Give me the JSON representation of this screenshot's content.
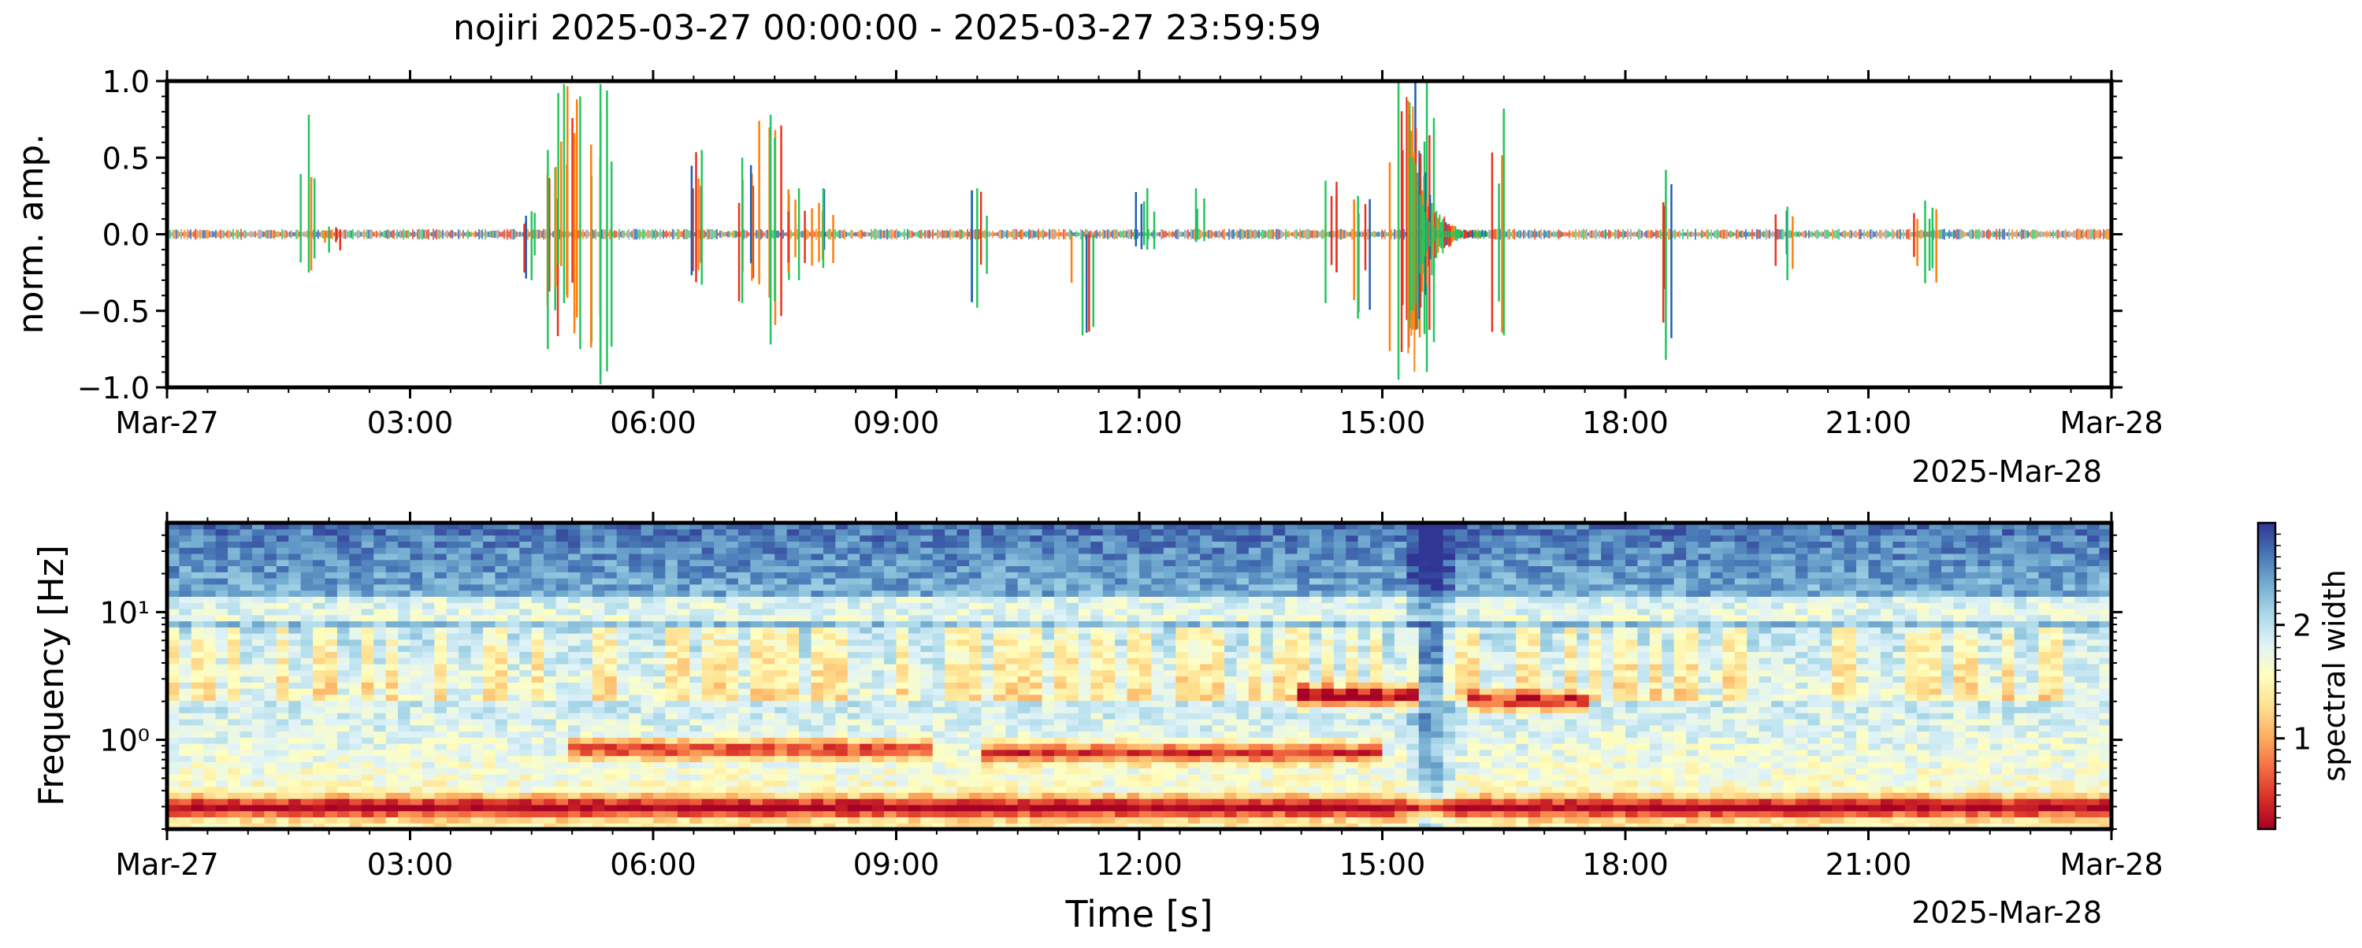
{
  "chart_data": [
    {
      "type": "line",
      "title": "nojiri 2025-03-27 00:00:00 - 2025-03-27 23:59:59",
      "ylabel": "norm. amp.",
      "xlabel": "",
      "ylim": [
        -1.0,
        1.0
      ],
      "xlim": [
        "2025-03-27T00:00",
        "2025-03-28T00:00"
      ],
      "y_ticks": [
        "1.0",
        "0.5",
        "0.0",
        "−0.5",
        "−1.0"
      ],
      "y_tick_values": [
        1.0,
        0.5,
        0.0,
        -0.5,
        -1.0
      ],
      "x_tick_labels": [
        "Mar-27",
        "03:00",
        "06:00",
        "09:00",
        "12:00",
        "15:00",
        "18:00",
        "21:00",
        "Mar-28"
      ],
      "x_offset_label": "2025-Mar-28",
      "series_colors": [
        "#1f5fb0",
        "#ff7f0e",
        "#e8341c",
        "#22c55e",
        "#9a9a9a"
      ],
      "events": [
        {
          "t": 1.75,
          "amp": 0.78,
          "neg": -0.25
        },
        {
          "t": 2.0,
          "amp": 0.05,
          "neg": -0.12
        },
        {
          "t": 4.5,
          "amp": 0.15,
          "neg": -0.3
        },
        {
          "t": 4.7,
          "amp": 0.55,
          "neg": -0.75
        },
        {
          "t": 4.9,
          "amp": 0.98,
          "neg": -0.45
        },
        {
          "t": 5.1,
          "amp": 0.9,
          "neg": -0.75
        },
        {
          "t": 5.35,
          "amp": 0.98,
          "neg": -0.98
        },
        {
          "t": 6.6,
          "amp": 0.55,
          "neg": -0.33
        },
        {
          "t": 7.1,
          "amp": 0.5,
          "neg": -0.45
        },
        {
          "t": 7.45,
          "amp": 0.78,
          "neg": -0.72
        },
        {
          "t": 7.8,
          "amp": 0.3,
          "neg": -0.3
        },
        {
          "t": 8.1,
          "amp": 0.3,
          "neg": -0.22
        },
        {
          "t": 10.0,
          "amp": 0.3,
          "neg": -0.48
        },
        {
          "t": 11.3,
          "amp": 0.0,
          "neg": -0.66
        },
        {
          "t": 12.1,
          "amp": 0.3,
          "neg": -0.1
        },
        {
          "t": 12.7,
          "amp": 0.3,
          "neg": -0.05
        },
        {
          "t": 14.3,
          "amp": 0.35,
          "neg": -0.45
        },
        {
          "t": 14.7,
          "amp": 0.25,
          "neg": -0.55
        },
        {
          "t": 15.2,
          "amp": 1.0,
          "neg": -0.95
        },
        {
          "t": 15.55,
          "amp": 1.0,
          "neg": -0.9
        },
        {
          "t": 16.5,
          "amp": 0.82,
          "neg": -0.66
        },
        {
          "t": 18.5,
          "amp": 0.42,
          "neg": -0.82
        },
        {
          "t": 20.0,
          "amp": 0.18,
          "neg": -0.3
        },
        {
          "t": 21.7,
          "amp": 0.22,
          "neg": -0.32
        }
      ]
    },
    {
      "type": "heatmap",
      "xlabel": "Time [s]",
      "ylabel": "Frequency [Hz]",
      "y_scale": "log",
      "ylim": [
        0.2,
        50
      ],
      "xlim": [
        "2025-03-27T00:00",
        "2025-03-28T00:00"
      ],
      "y_tick_labels": [
        "10⁰",
        "10¹"
      ],
      "y_tick_values": [
        1,
        10
      ],
      "x_tick_labels": [
        "Mar-27",
        "03:00",
        "06:00",
        "09:00",
        "12:00",
        "15:00",
        "18:00",
        "21:00",
        "Mar-28"
      ],
      "x_offset_label": "2025-Mar-28",
      "colorbar": {
        "label": "spectral width",
        "colormap": "RdYlBu",
        "colors": [
          "#a50026",
          "#d73027",
          "#f46d43",
          "#fdae61",
          "#fee090",
          "#ffffbf",
          "#e0f3f8",
          "#abd9e9",
          "#74add1",
          "#4575b4",
          "#313695"
        ],
        "tick_labels": [
          "1",
          "2"
        ],
        "tick_values": [
          1,
          2
        ],
        "range": [
          0.2,
          2.9
        ]
      },
      "red_bands": [
        {
          "t0": 5.0,
          "t1": 9.5,
          "f": 0.85,
          "level": 0.8
        },
        {
          "t0": 10.0,
          "t1": 15.0,
          "f": 0.8,
          "level": 0.8
        },
        {
          "t0": 14.0,
          "t1": 15.5,
          "f": 2.2,
          "level": 1.0
        },
        {
          "t0": 16.0,
          "t1": 17.5,
          "f": 2.0,
          "level": 0.9
        },
        {
          "t0": 0.0,
          "t1": 24.0,
          "f": 0.3,
          "level": 0.9
        }
      ]
    }
  ]
}
